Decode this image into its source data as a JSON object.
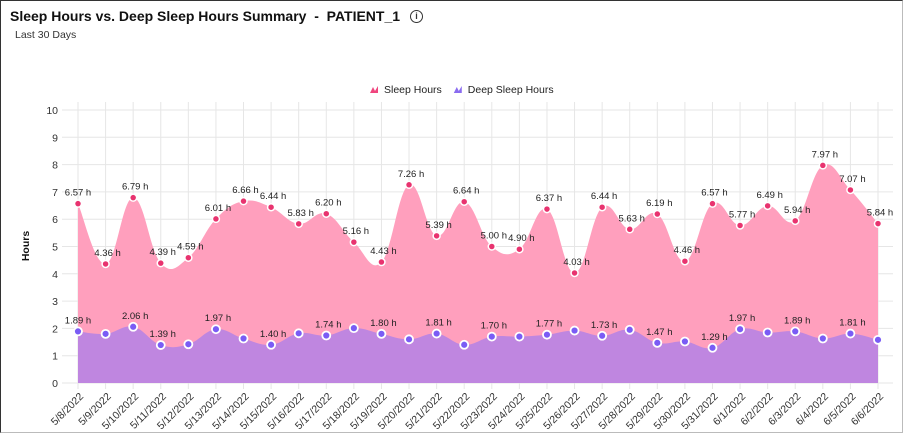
{
  "header": {
    "title": "Sleep Hours vs. Deep Sleep Hours Summary  -  PATIENT_1",
    "subtitle": "Last 30 Days",
    "info_icon": "info-circle-icon"
  },
  "chart_data": {
    "type": "area",
    "title": "Sleep Hours vs. Deep Sleep Hours Summary  -  PATIENT_1",
    "subtitle": "Last 30 Days",
    "xlabel": "",
    "ylabel": "Hours",
    "ylim": [
      0,
      10
    ],
    "yticks": [
      "0",
      "1",
      "2",
      "3",
      "4",
      "5",
      "6",
      "7",
      "8",
      "9",
      "10"
    ],
    "grid": true,
    "legend": "top-center",
    "categories": [
      "5/8/2022",
      "5/9/2022",
      "5/10/2022",
      "5/11/2022",
      "5/12/2022",
      "5/13/2022",
      "5/14/2022",
      "5/15/2022",
      "5/16/2022",
      "5/17/2022",
      "5/18/2022",
      "5/19/2022",
      "5/20/2022",
      "5/21/2022",
      "5/22/2022",
      "5/23/2022",
      "5/24/2022",
      "5/25/2022",
      "5/26/2022",
      "5/27/2022",
      "5/28/2022",
      "5/29/2022",
      "5/30/2022",
      "5/31/2022",
      "6/1/2022",
      "6/2/2022",
      "6/3/2022",
      "6/4/2022",
      "6/5/2022",
      "6/6/2022"
    ],
    "series": [
      {
        "name": "Sleep Hours",
        "color": "#ff9fbd",
        "marker_color": "#e8336f",
        "values": [
          6.57,
          4.36,
          6.79,
          4.39,
          4.59,
          6.01,
          6.66,
          6.44,
          5.83,
          6.2,
          5.16,
          4.43,
          7.26,
          5.39,
          6.64,
          5.0,
          4.9,
          6.37,
          4.03,
          6.44,
          5.63,
          6.19,
          4.46,
          6.57,
          5.77,
          6.49,
          5.94,
          7.97,
          7.07,
          5.84
        ],
        "labels": [
          "6.57 h",
          "4.36 h",
          "6.79 h",
          "4.39 h",
          "4.59 h",
          "6.01 h",
          "6.66 h",
          "6.44 h",
          "5.83 h",
          "6.20 h",
          "5.16 h",
          "4.43 h",
          "7.26 h",
          "5.39 h",
          "6.64 h",
          "5.00 h",
          "4.90 h",
          "6.37 h",
          "4.03 h",
          "6.44 h",
          "5.63 h",
          "6.19 h",
          "4.46 h",
          "6.57 h",
          "5.77 h",
          "6.49 h",
          "5.94 h",
          "7.97 h",
          "7.07 h",
          "5.84 h"
        ]
      },
      {
        "name": "Deep Sleep Hours",
        "color": "#bf86e0",
        "marker_color": "#7a5cf5",
        "values": [
          1.89,
          1.8,
          2.06,
          1.39,
          1.42,
          1.97,
          1.63,
          1.4,
          1.82,
          1.74,
          2.01,
          1.8,
          1.6,
          1.81,
          1.4,
          1.7,
          1.7,
          1.77,
          1.92,
          1.73,
          1.95,
          1.47,
          1.52,
          1.29,
          1.97,
          1.85,
          1.89,
          1.63,
          1.81,
          1.58
        ],
        "labels": [
          "1.89 h",
          "",
          "2.06 h",
          "1.39 h",
          "",
          "1.97 h",
          "",
          "1.40 h",
          "",
          "1.74 h",
          "",
          "1.80 h",
          "",
          "1.81 h",
          "",
          "1.70 h",
          "",
          "1.77 h",
          "",
          "1.73 h",
          "",
          "1.47 h",
          "",
          "1.29 h",
          "1.97 h",
          "",
          "1.89 h",
          "",
          "1.81 h",
          ""
        ]
      }
    ]
  }
}
